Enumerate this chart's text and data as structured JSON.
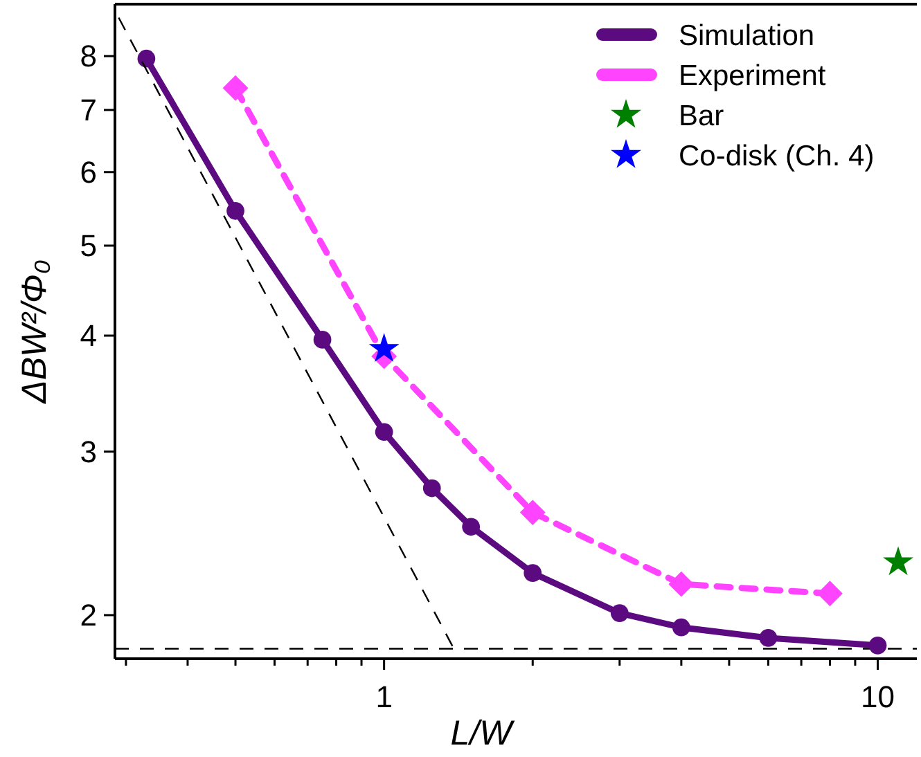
{
  "chart_data": {
    "type": "line",
    "xlabel": "L/W",
    "ylabel": "ΔBW²/Φ₀",
    "log": "xy",
    "xlim": [
      0.285,
      12
    ],
    "ylim": [
      1.795,
      9.1
    ],
    "xticks": [
      {
        "value": 0.3,
        "label": null
      },
      {
        "value": 0.4,
        "label": null
      },
      {
        "value": 0.5,
        "label": null
      },
      {
        "value": 0.6,
        "label": null
      },
      {
        "value": 0.7,
        "label": null
      },
      {
        "value": 0.8,
        "label": null
      },
      {
        "value": 0.9,
        "label": null
      },
      1,
      {
        "value": 2,
        "label": null
      },
      {
        "value": 3,
        "label": null
      },
      {
        "value": 4,
        "label": null
      },
      {
        "value": 5,
        "label": null
      },
      {
        "value": 6,
        "label": null
      },
      {
        "value": 7,
        "label": null
      },
      {
        "value": 8,
        "label": null
      },
      {
        "value": 9,
        "label": null
      },
      10
    ],
    "yticks": [
      2,
      3,
      4,
      5,
      6,
      7,
      8
    ],
    "grid": false,
    "legend": "top right",
    "ref_lines": [
      {
        "axis": "y",
        "value": 1.84,
        "color": "#000000",
        "line_style": "dashed"
      }
    ],
    "series": [
      {
        "name": "Simulation",
        "color": "#5c0a80",
        "marker": "circle",
        "line_style": "solid",
        "x": [
          0.33,
          0.5,
          0.75,
          1,
          1.25,
          1.5,
          2,
          3,
          4,
          6,
          10
        ],
        "values": [
          7.95,
          5.45,
          3.96,
          3.15,
          2.74,
          2.49,
          2.22,
          2.01,
          1.94,
          1.89,
          1.855
        ]
      },
      {
        "name": "Experiment",
        "color": "#ff44ff",
        "marker": "diamond",
        "line_style": "dashed",
        "x": [
          0.5,
          1,
          2,
          4,
          8
        ],
        "values": [
          7.39,
          3.8,
          2.58,
          2.16,
          2.11
        ]
      },
      {
        "name": "Bar",
        "type": "scatter",
        "color": "#008000",
        "marker": "star",
        "x": [
          11
        ],
        "values": [
          2.28
        ]
      },
      {
        "name": "Co-disk (Ch. 4)",
        "type": "scatter",
        "color": "#0000ff",
        "marker": "star",
        "x": [
          1
        ],
        "values": [
          3.87
        ]
      },
      {
        "color": "#000000",
        "marker": "none",
        "line_style": "dashed",
        "x": [
          0.29,
          1.4
        ],
        "values": [
          8.8,
          1.82
        ]
      }
    ]
  }
}
